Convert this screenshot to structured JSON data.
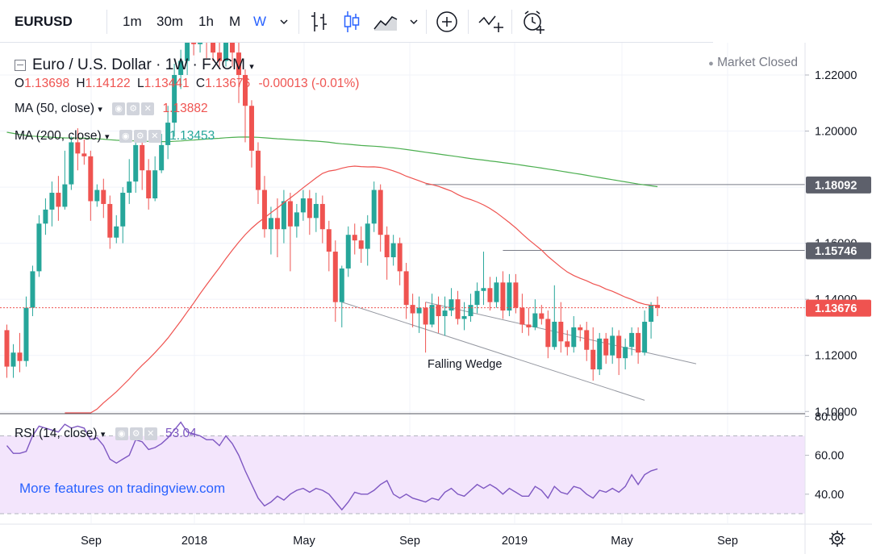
{
  "toolbar": {
    "symbol": "EURUSD",
    "intervals": [
      "1m",
      "30m",
      "1h",
      "M",
      "W"
    ],
    "active_interval": "W",
    "icons": [
      "chevron-down-icon",
      "bar-style-icon",
      "candles-icon",
      "area-icon",
      "chevron-down-icon",
      "add-compare-icon",
      "indicators-icon",
      "alert-clock-icon"
    ]
  },
  "legend": {
    "title": "Euro / U.S. Dollar · 1W · FXCM",
    "market_status": "Market Closed",
    "ohlc": {
      "o_label": "O",
      "o": "1.13698",
      "h_label": "H",
      "h": "1.14122",
      "l_label": "L",
      "l": "1.13441",
      "c_label": "C",
      "c": "1.13676",
      "change": "-0.00013 (-0.01%)"
    },
    "ma50": {
      "label": "MA (50, close)",
      "value": "1.13882"
    },
    "ma200": {
      "label": "MA (200, close)",
      "value": "1.13453"
    },
    "rsi": {
      "label": "RSI (14, close)",
      "value": "53.04"
    }
  },
  "promo": "More features on tradingview.com",
  "annotation": "Falling Wedge",
  "colors": {
    "up": "#26a69a",
    "down": "#ef5350",
    "ma50": "#ef5350",
    "ma200": "#4caf50",
    "rsi": "#7e57c2",
    "rsi_band": "#f3e5fc",
    "price_tag": "#ef5350",
    "level_tag": "#5d606b"
  },
  "chart_data": {
    "type": "candlestick",
    "y_ticks": [
      "1.22000",
      "1.20000",
      "1.16000",
      "1.14000",
      "1.12000",
      "1.10000"
    ],
    "ylim": [
      1.0995,
      1.2315
    ],
    "x_labels": [
      "Sep",
      "2018",
      "May",
      "Sep",
      "2019",
      "May",
      "Sep"
    ],
    "price_label": "1.13676",
    "levels": [
      {
        "label": "1.18092",
        "value": 1.18092
      },
      {
        "label": "1.15746",
        "value": 1.15746
      }
    ],
    "series_candles": [
      [
        1.129,
        1.116,
        1.112,
        1.131
      ],
      [
        1.116,
        1.121,
        1.112,
        1.124
      ],
      [
        1.121,
        1.118,
        1.114,
        1.128
      ],
      [
        1.118,
        1.137,
        1.116,
        1.141
      ],
      [
        1.137,
        1.15,
        1.134,
        1.152
      ],
      [
        1.15,
        1.167,
        1.148,
        1.17
      ],
      [
        1.167,
        1.172,
        1.163,
        1.176
      ],
      [
        1.172,
        1.178,
        1.166,
        1.182
      ],
      [
        1.178,
        1.173,
        1.168,
        1.184
      ],
      [
        1.173,
        1.181,
        1.172,
        1.193
      ],
      [
        1.181,
        1.196,
        1.179,
        1.198
      ],
      [
        1.196,
        1.192,
        1.186,
        1.201
      ],
      [
        1.192,
        1.191,
        1.188,
        1.197
      ],
      [
        1.191,
        1.175,
        1.168,
        1.193
      ],
      [
        1.175,
        1.179,
        1.173,
        1.181
      ],
      [
        1.179,
        1.174,
        1.169,
        1.183
      ],
      [
        1.174,
        1.162,
        1.158,
        1.177
      ],
      [
        1.162,
        1.166,
        1.16,
        1.17
      ],
      [
        1.166,
        1.178,
        1.16,
        1.18
      ],
      [
        1.178,
        1.182,
        1.174,
        1.19
      ],
      [
        1.182,
        1.195,
        1.178,
        1.197
      ],
      [
        1.195,
        1.186,
        1.179,
        1.198
      ],
      [
        1.186,
        1.176,
        1.172,
        1.19
      ],
      [
        1.176,
        1.186,
        1.175,
        1.191
      ],
      [
        1.186,
        1.195,
        1.185,
        1.199
      ],
      [
        1.195,
        1.203,
        1.19,
        1.209
      ],
      [
        1.203,
        1.22,
        1.198,
        1.224
      ],
      [
        1.22,
        1.225,
        1.215,
        1.229
      ],
      [
        1.225,
        1.235,
        1.22,
        1.251
      ],
      [
        1.235,
        1.231,
        1.227,
        1.244
      ],
      [
        1.231,
        1.24,
        1.228,
        1.246
      ],
      [
        1.24,
        1.232,
        1.226,
        1.243
      ],
      [
        1.232,
        1.228,
        1.225,
        1.242
      ],
      [
        1.228,
        1.225,
        1.223,
        1.237
      ],
      [
        1.225,
        1.237,
        1.223,
        1.242
      ],
      [
        1.237,
        1.228,
        1.223,
        1.239
      ],
      [
        1.228,
        1.22,
        1.21,
        1.232
      ],
      [
        1.22,
        1.209,
        1.196,
        1.222
      ],
      [
        1.209,
        1.193,
        1.187,
        1.211
      ],
      [
        1.193,
        1.179,
        1.174,
        1.196
      ],
      [
        1.179,
        1.165,
        1.162,
        1.184
      ],
      [
        1.165,
        1.169,
        1.156,
        1.173
      ],
      [
        1.169,
        1.165,
        1.155,
        1.176
      ],
      [
        1.165,
        1.175,
        1.16,
        1.179
      ],
      [
        1.175,
        1.166,
        1.15,
        1.178
      ],
      [
        1.166,
        1.171,
        1.162,
        1.174
      ],
      [
        1.171,
        1.176,
        1.168,
        1.179
      ],
      [
        1.176,
        1.169,
        1.163,
        1.179
      ],
      [
        1.169,
        1.174,
        1.164,
        1.178
      ],
      [
        1.174,
        1.165,
        1.16,
        1.177
      ],
      [
        1.165,
        1.157,
        1.15,
        1.168
      ],
      [
        1.157,
        1.139,
        1.132,
        1.161
      ],
      [
        1.139,
        1.151,
        1.13,
        1.152
      ],
      [
        1.151,
        1.163,
        1.148,
        1.166
      ],
      [
        1.163,
        1.161,
        1.156,
        1.167
      ],
      [
        1.161,
        1.158,
        1.153,
        1.166
      ],
      [
        1.158,
        1.167,
        1.152,
        1.17
      ],
      [
        1.167,
        1.179,
        1.164,
        1.182
      ],
      [
        1.179,
        1.163,
        1.157,
        1.181
      ],
      [
        1.163,
        1.155,
        1.147,
        1.166
      ],
      [
        1.155,
        1.16,
        1.152,
        1.163
      ],
      [
        1.16,
        1.15,
        1.145,
        1.162
      ],
      [
        1.15,
        1.138,
        1.133,
        1.153
      ],
      [
        1.138,
        1.135,
        1.13,
        1.142
      ],
      [
        1.135,
        1.137,
        1.128,
        1.141
      ],
      [
        1.137,
        1.131,
        1.121,
        1.139
      ],
      [
        1.131,
        1.138,
        1.13,
        1.142
      ],
      [
        1.138,
        1.134,
        1.128,
        1.141
      ],
      [
        1.134,
        1.136,
        1.127,
        1.141
      ],
      [
        1.136,
        1.14,
        1.134,
        1.144
      ],
      [
        1.14,
        1.133,
        1.131,
        1.143
      ],
      [
        1.133,
        1.134,
        1.129,
        1.139
      ],
      [
        1.134,
        1.138,
        1.132,
        1.142
      ],
      [
        1.138,
        1.143,
        1.135,
        1.146
      ],
      [
        1.143,
        1.144,
        1.138,
        1.157
      ],
      [
        1.144,
        1.139,
        1.136,
        1.148
      ],
      [
        1.139,
        1.146,
        1.137,
        1.148
      ],
      [
        1.146,
        1.136,
        1.133,
        1.15
      ],
      [
        1.136,
        1.146,
        1.134,
        1.149
      ],
      [
        1.146,
        1.137,
        1.135,
        1.149
      ],
      [
        1.137,
        1.131,
        1.128,
        1.142
      ],
      [
        1.131,
        1.13,
        1.127,
        1.137
      ],
      [
        1.13,
        1.135,
        1.129,
        1.14
      ],
      [
        1.135,
        1.133,
        1.131,
        1.138
      ],
      [
        1.133,
        1.123,
        1.119,
        1.136
      ],
      [
        1.123,
        1.132,
        1.122,
        1.145
      ],
      [
        1.132,
        1.125,
        1.121,
        1.139
      ],
      [
        1.125,
        1.123,
        1.12,
        1.129
      ],
      [
        1.123,
        1.13,
        1.121,
        1.134
      ],
      [
        1.13,
        1.129,
        1.125,
        1.131
      ],
      [
        1.129,
        1.122,
        1.118,
        1.132
      ],
      [
        1.122,
        1.115,
        1.111,
        1.13
      ],
      [
        1.115,
        1.126,
        1.113,
        1.128
      ],
      [
        1.126,
        1.12,
        1.117,
        1.128
      ],
      [
        1.12,
        1.127,
        1.117,
        1.13
      ],
      [
        1.127,
        1.119,
        1.113,
        1.129
      ],
      [
        1.119,
        1.123,
        1.115,
        1.126
      ],
      [
        1.123,
        1.128,
        1.12,
        1.13
      ],
      [
        1.128,
        1.121,
        1.117,
        1.13
      ],
      [
        1.121,
        1.132,
        1.12,
        1.136
      ],
      [
        1.132,
        1.138,
        1.126,
        1.139
      ],
      [
        1.138,
        1.137,
        1.134,
        1.141
      ]
    ],
    "rsi": {
      "ticks": [
        "80.00",
        "60.00",
        "40.00"
      ],
      "ylim": [
        25,
        81
      ],
      "band": [
        30,
        70
      ],
      "values": [
        65,
        61,
        61,
        62,
        70,
        75,
        74,
        73,
        72,
        76,
        74,
        75,
        74,
        68,
        69,
        65,
        58,
        56,
        58,
        60,
        68,
        67,
        63,
        64,
        66,
        69,
        73,
        77,
        72,
        71,
        70,
        68,
        68,
        65,
        70,
        66,
        60,
        52,
        45,
        38,
        34,
        36,
        39,
        37,
        40,
        42,
        43,
        41,
        43,
        42,
        40,
        36,
        32,
        36,
        41,
        40,
        40,
        42,
        45,
        47,
        40,
        38,
        40,
        38,
        37,
        36,
        38,
        37,
        41,
        43,
        40,
        39,
        42,
        45,
        43,
        45,
        43,
        40,
        43,
        41,
        39,
        39,
        44,
        42,
        38,
        44,
        41,
        40,
        44,
        43,
        40,
        38,
        42,
        41,
        43,
        41,
        44,
        50,
        45,
        50,
        52,
        53
      ]
    }
  }
}
